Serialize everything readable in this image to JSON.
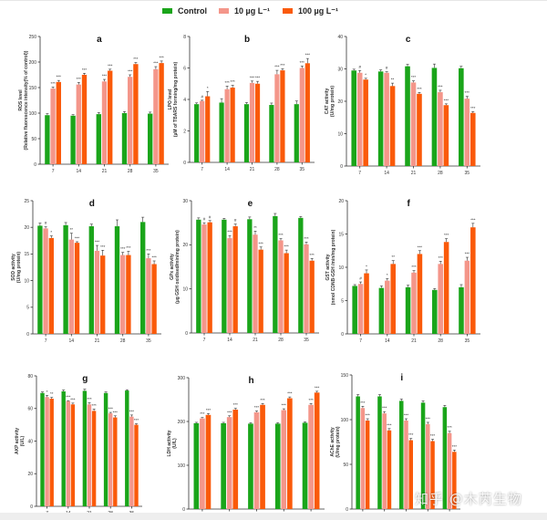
{
  "legend": {
    "items": [
      {
        "label": "Control",
        "color": "#1aa51a"
      },
      {
        "label": "10 µg L⁻¹",
        "color": "#f4968a"
      },
      {
        "label": "100 µg L⁻¹",
        "color": "#fa5a0a"
      }
    ]
  },
  "watermark": "知乎 @木芮生物",
  "chart_data": [
    {
      "id": "a",
      "type": "bar",
      "title": "a",
      "ylabel": "ROS level",
      "ylabel2": "(Relative fluorescence intensity(% of control))",
      "categories": [
        "7",
        "14",
        "21",
        "28",
        "35"
      ],
      "ylim": [
        0,
        250
      ],
      "yticks": [
        0,
        50,
        100,
        150,
        200,
        250
      ],
      "series": [
        {
          "name": "Control",
          "values": [
            96,
            95,
            98,
            100,
            99
          ],
          "err": [
            3,
            2,
            3,
            3,
            3
          ],
          "sig": [
            "",
            "",
            "",
            "",
            ""
          ]
        },
        {
          "name": "10 µg L⁻¹",
          "values": [
            148,
            156,
            162,
            171,
            186
          ],
          "err": [
            3,
            4,
            4,
            4,
            5
          ],
          "sig": [
            "***",
            "***",
            "***",
            "***",
            "***"
          ]
        },
        {
          "name": "100 µg L⁻¹",
          "values": [
            161,
            175,
            183,
            196,
            198
          ],
          "err": [
            3,
            3,
            3,
            3,
            4
          ],
          "sig": [
            "***",
            "***",
            "***",
            "***",
            "***"
          ]
        }
      ]
    },
    {
      "id": "b",
      "type": "bar",
      "title": "b",
      "ylabel": "LPO level",
      "ylabel2": "(µM of TBARS forming/mg protein)",
      "categories": [
        "7",
        "14",
        "21",
        "28",
        "35"
      ],
      "ylim": [
        0,
        8
      ],
      "yticks": [
        0,
        2,
        4,
        6,
        8
      ],
      "series": [
        {
          "name": "Control",
          "values": [
            3.7,
            3.8,
            3.7,
            3.65,
            3.7
          ],
          "err": [
            0.08,
            0.25,
            0.1,
            0.12,
            0.2
          ],
          "sig": [
            "",
            "",
            "",
            "",
            ""
          ]
        },
        {
          "name": "10 µg L⁻¹",
          "values": [
            3.9,
            4.65,
            5.05,
            5.6,
            6.0
          ],
          "err": [
            0.05,
            0.2,
            0.12,
            0.25,
            0.12
          ],
          "sig": [
            "#",
            "***",
            "***",
            "***",
            "***"
          ]
        },
        {
          "name": "100 µg L⁻¹",
          "values": [
            4.2,
            4.75,
            5.0,
            5.85,
            6.3
          ],
          "err": [
            0.3,
            0.15,
            0.15,
            0.1,
            0.3
          ],
          "sig": [
            "*",
            "***",
            "***",
            "***",
            "***"
          ]
        }
      ]
    },
    {
      "id": "c",
      "type": "bar",
      "title": "c",
      "ylabel": "CAT activity",
      "ylabel2": "(U/mg protein)",
      "categories": [
        "7",
        "14",
        "21",
        "28",
        "35"
      ],
      "ylim": [
        0,
        40
      ],
      "yticks": [
        0,
        10,
        20,
        30,
        40
      ],
      "series": [
        {
          "name": "Control",
          "values": [
            29.5,
            29.2,
            30.8,
            30.3,
            30.2
          ],
          "err": [
            0.4,
            0.5,
            0.6,
            1.2,
            0.6
          ],
          "sig": [
            "",
            "",
            "",
            "",
            ""
          ]
        },
        {
          "name": "10 µg L⁻¹",
          "values": [
            28.8,
            28.8,
            25.8,
            22.8,
            20.8
          ],
          "err": [
            0.7,
            0.3,
            0.5,
            0.6,
            0.7
          ],
          "sig": [
            "#",
            "#",
            "***",
            "***",
            "***"
          ]
        },
        {
          "name": "100 µg L⁻¹",
          "values": [
            26.7,
            24.7,
            22.3,
            18.8,
            16.4
          ],
          "err": [
            0.4,
            0.9,
            0.4,
            0.4,
            0.4
          ],
          "sig": [
            "*",
            "**",
            "***",
            "***",
            "***"
          ]
        }
      ]
    },
    {
      "id": "d",
      "type": "bar",
      "title": "d",
      "ylabel": "SOD activity",
      "ylabel2": "(U/mg protein)",
      "categories": [
        "7",
        "14",
        "21",
        "28",
        "35"
      ],
      "ylim": [
        0,
        25
      ],
      "yticks": [
        0,
        5,
        10,
        15,
        20,
        25
      ],
      "series": [
        {
          "name": "Control",
          "values": [
            20.3,
            20.4,
            20.2,
            20.2,
            21.0
          ],
          "err": [
            0.5,
            0.5,
            0.4,
            1.2,
            0.9
          ],
          "sig": [
            "",
            "",
            "",
            "",
            ""
          ]
        },
        {
          "name": "10 µg L⁻¹",
          "values": [
            19.8,
            17.7,
            15.6,
            14.8,
            14.2
          ],
          "err": [
            0.3,
            1.2,
            1.0,
            0.5,
            0.8
          ],
          "sig": [
            "#",
            "**",
            "***",
            "***",
            "***"
          ]
        },
        {
          "name": "100 µg L⁻¹",
          "values": [
            18.0,
            17.1,
            14.7,
            14.8,
            13.1
          ],
          "err": [
            0.4,
            0.2,
            1.0,
            0.7,
            0.6
          ],
          "sig": [
            "*",
            "***",
            "***",
            "***",
            "***"
          ]
        }
      ]
    },
    {
      "id": "e",
      "type": "bar",
      "title": "e",
      "ylabel": "GPx activity",
      "ylabel2": "(µg GSH oxidised/min/mg protein)",
      "categories": [
        "7",
        "14",
        "21",
        "28",
        "35"
      ],
      "ylim": [
        0,
        30
      ],
      "yticks": [
        0,
        10,
        20,
        30
      ],
      "series": [
        {
          "name": "Control",
          "values": [
            25.7,
            25.7,
            25.8,
            26.5,
            26.1
          ],
          "err": [
            0.4,
            0.3,
            0.5,
            0.6,
            0.3
          ],
          "sig": [
            "",
            "",
            "",
            "",
            ""
          ]
        },
        {
          "name": "10 µg L⁻¹",
          "values": [
            24.6,
            21.5,
            22.3,
            21.0,
            20.1
          ],
          "err": [
            0.4,
            0.6,
            0.8,
            0.4,
            0.5
          ],
          "sig": [
            "#",
            "***",
            "**",
            "***",
            "***"
          ]
        },
        {
          "name": "100 µg L⁻¹",
          "values": [
            25.1,
            24.2,
            18.9,
            18.1,
            16.4
          ],
          "err": [
            0.4,
            0.5,
            0.6,
            0.7,
            0.5
          ],
          "sig": [
            "#",
            "#",
            "***",
            "***",
            "***"
          ]
        }
      ]
    },
    {
      "id": "f",
      "type": "bar",
      "title": "f",
      "ylabel": "GST activity",
      "ylabel2": "(nmol CDNB-GSH /min/mg protein)",
      "categories": [
        "7",
        "14",
        "21",
        "28",
        "35"
      ],
      "ylim": [
        0,
        20
      ],
      "yticks": [
        0,
        5,
        10,
        15,
        20
      ],
      "series": [
        {
          "name": "Control",
          "values": [
            7.2,
            6.9,
            7.0,
            6.6,
            7.0
          ],
          "err": [
            0.2,
            0.3,
            0.3,
            0.2,
            0.4
          ],
          "sig": [
            "",
            "",
            "",
            "",
            ""
          ]
        },
        {
          "name": "10 µg L⁻¹",
          "values": [
            7.5,
            8.0,
            9.2,
            10.5,
            11.0
          ],
          "err": [
            0.3,
            0.3,
            0.3,
            0.4,
            0.5
          ],
          "sig": [
            "#",
            "*",
            "***",
            "***",
            "***"
          ]
        },
        {
          "name": "100 µg L⁻¹",
          "values": [
            9.1,
            10.5,
            12.0,
            13.8,
            16.0
          ],
          "err": [
            0.5,
            0.5,
            0.5,
            0.5,
            0.6
          ],
          "sig": [
            "*",
            "**",
            "***",
            "***",
            "***"
          ]
        }
      ]
    },
    {
      "id": "g",
      "type": "bar",
      "title": "g",
      "ylabel": "AKP activity",
      "ylabel2": "(U/L)",
      "categories": [
        "7",
        "14",
        "21",
        "28",
        "35"
      ],
      "ylim": [
        0,
        80
      ],
      "yticks": [
        0,
        20,
        40,
        60,
        80
      ],
      "series": [
        {
          "name": "Control",
          "values": [
            69.5,
            70.5,
            70.8,
            69.5,
            71.0
          ],
          "err": [
            0.6,
            0.8,
            1.0,
            0.6,
            0.5
          ],
          "sig": [
            "",
            "",
            "",
            "",
            ""
          ]
        },
        {
          "name": "10 µg L⁻¹",
          "values": [
            67.0,
            64.5,
            62.5,
            57.0,
            55.0
          ],
          "err": [
            1.0,
            0.3,
            1.0,
            0.6,
            1.0
          ],
          "sig": [
            "*",
            "***",
            "***",
            "***",
            "***"
          ]
        },
        {
          "name": "100 µg L⁻¹",
          "values": [
            66.0,
            62.5,
            58.5,
            54.5,
            50.0
          ],
          "err": [
            0.8,
            0.8,
            1.2,
            1.0,
            0.6
          ],
          "sig": [
            "**",
            "***",
            "***",
            "***",
            "***"
          ]
        }
      ]
    },
    {
      "id": "h",
      "type": "bar",
      "title": "h",
      "ylabel": "LDH activity",
      "ylabel2": "(U/L)",
      "categories": [
        "7",
        "14",
        "21",
        "28",
        "35"
      ],
      "ylim": [
        0,
        300
      ],
      "yticks": [
        0,
        100,
        200,
        300
      ],
      "series": [
        {
          "name": "Control",
          "values": [
            196,
            196,
            195,
            195,
            197
          ],
          "err": [
            2,
            2,
            2,
            2,
            2
          ],
          "sig": [
            "",
            "",
            "",
            "",
            ""
          ]
        },
        {
          "name": "10 µg L⁻¹",
          "values": [
            207,
            210,
            221,
            226,
            238
          ],
          "err": [
            2,
            3,
            3,
            3,
            3
          ],
          "sig": [
            "***",
            "***",
            "***",
            "***",
            "***"
          ]
        },
        {
          "name": "100 µg L⁻¹",
          "values": [
            215,
            227,
            238,
            253,
            266
          ],
          "err": [
            3,
            3,
            3,
            3,
            3
          ],
          "sig": [
            "***",
            "***",
            "***",
            "***",
            "***"
          ]
        }
      ]
    },
    {
      "id": "i",
      "type": "bar",
      "title": "i",
      "ylabel": "AChE activity",
      "ylabel2": "(U/mg protein)",
      "categories": [
        "7",
        "14",
        "21",
        "28",
        "35"
      ],
      "ylim": [
        0,
        150
      ],
      "yticks": [
        0,
        50,
        100,
        150
      ],
      "series": [
        {
          "name": "Control",
          "values": [
            126,
            126,
            121,
            119,
            114
          ],
          "err": [
            2,
            2,
            2,
            2,
            2
          ],
          "sig": [
            "",
            "",
            "",
            "",
            ""
          ]
        },
        {
          "name": "10 µg L⁻¹",
          "values": [
            113,
            107,
            99,
            95,
            85
          ],
          "err": [
            2,
            2,
            2,
            2,
            2
          ],
          "sig": [
            "***",
            "***",
            "***",
            "***",
            "***"
          ]
        },
        {
          "name": "100 µg L⁻¹",
          "values": [
            99,
            88,
            77,
            76,
            64
          ],
          "err": [
            2,
            2,
            2,
            2,
            2
          ],
          "sig": [
            "***",
            "***",
            "***",
            "***",
            "***"
          ]
        }
      ]
    }
  ]
}
